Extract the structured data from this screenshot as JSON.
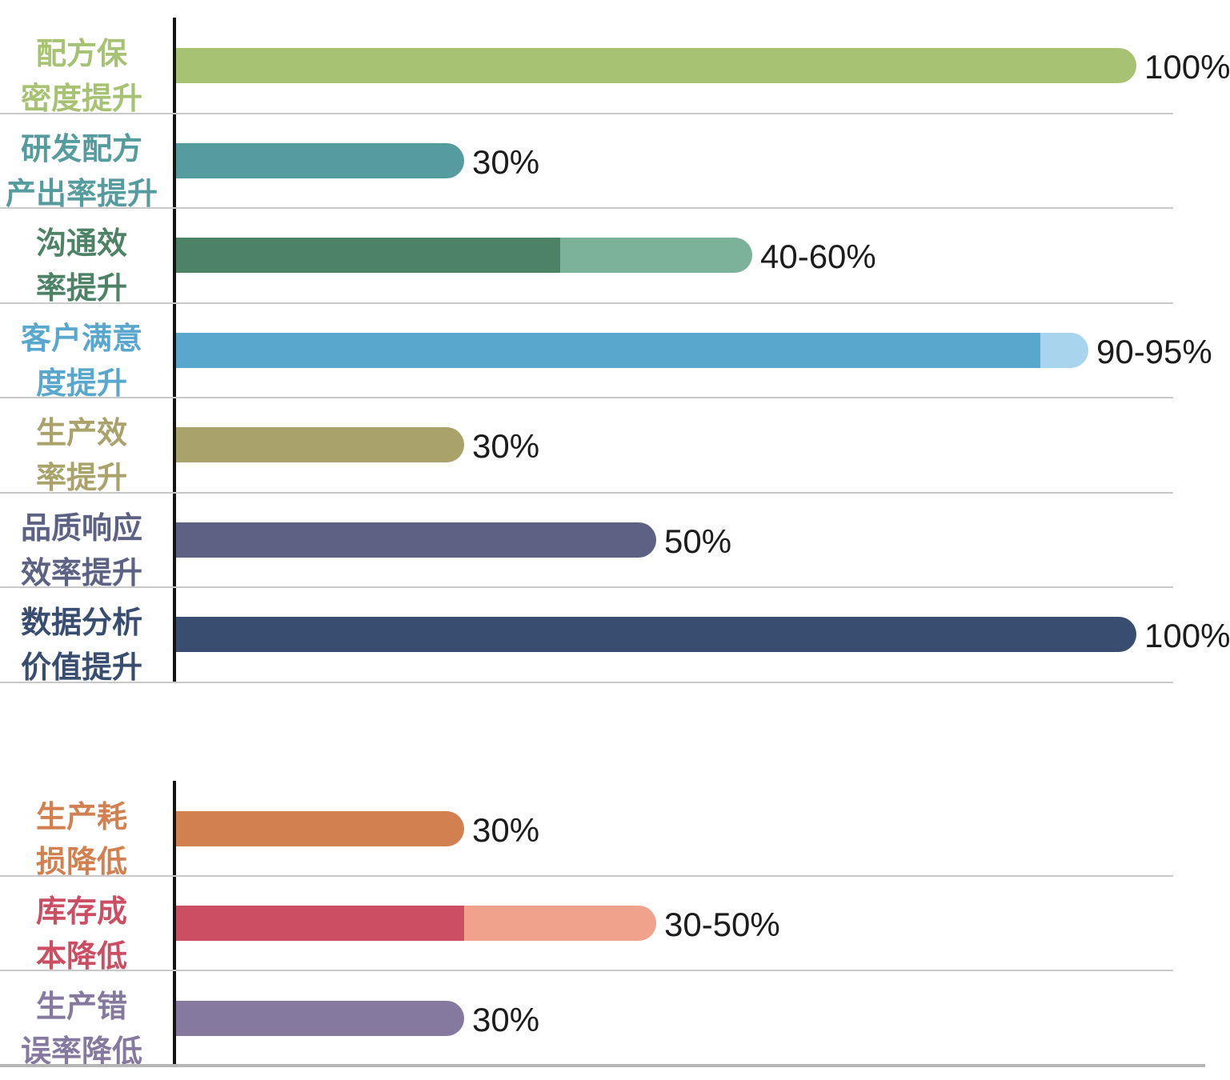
{
  "styles": {
    "background": "#ffffff",
    "axis_color": "#141414",
    "separator_color": "#c9c9c9",
    "value_label_color": "#1c1c1c"
  },
  "chart_data": [
    {
      "type": "bar",
      "orientation": "horizontal",
      "bar_style": "rounded-right-cap",
      "value_axis": {
        "unit": "%",
        "min": 0,
        "max": 100,
        "gridlines": false
      },
      "legend": "none",
      "items": [
        {
          "category": "配方保密度提升",
          "label_lines": [
            "配方保",
            "密度提升"
          ],
          "value": [
            100,
            100
          ],
          "display": "100%",
          "color": "#a6c272",
          "color_light": ""
        },
        {
          "category": "研发配方产出率提升",
          "label_lines": [
            "研发配方",
            "产出率提升"
          ],
          "value": [
            30,
            30
          ],
          "display": "30%",
          "color": "#569c9f",
          "color_light": ""
        },
        {
          "category": "沟通效率提升",
          "label_lines": [
            "沟通效",
            "率提升"
          ],
          "value": [
            40,
            60
          ],
          "display": "40-60%",
          "color": "#4d8266",
          "color_light": "#7cb29a"
        },
        {
          "category": "客户满意度提升",
          "label_lines": [
            "客户满意",
            "度提升"
          ],
          "value": [
            90,
            95
          ],
          "display": "90-95%",
          "color": "#59a7cd",
          "color_light": "#a9d4ee"
        },
        {
          "category": "生产效率提升",
          "label_lines": [
            "生产效",
            "率提升"
          ],
          "value": [
            30,
            30
          ],
          "display": "30%",
          "color": "#a9a26b",
          "color_light": ""
        },
        {
          "category": "品质响应效率提升",
          "label_lines": [
            "品质响应",
            "效率提升"
          ],
          "value": [
            50,
            50
          ],
          "display": "50%",
          "color": "#5d6284",
          "color_light": ""
        },
        {
          "category": "数据分析价值提升",
          "label_lines": [
            "数据分析",
            "价值提升"
          ],
          "value": [
            100,
            100
          ],
          "display": "100%",
          "color": "#384d6f",
          "color_light": ""
        }
      ]
    },
    {
      "type": "bar",
      "orientation": "horizontal",
      "bar_style": "rounded-right-cap",
      "value_axis": {
        "unit": "%",
        "min": 0,
        "max": 100,
        "gridlines": false
      },
      "legend": "none",
      "items": [
        {
          "category": "生产耗损降低",
          "label_lines": [
            "生产耗",
            "损降低"
          ],
          "value": [
            30,
            30
          ],
          "display": "30%",
          "color": "#d28050",
          "color_light": ""
        },
        {
          "category": "库存成本降低",
          "label_lines": [
            "库存成",
            "本降低"
          ],
          "value": [
            30,
            50
          ],
          "display": "30-50%",
          "color": "#cb4e62",
          "color_light": "#f1a28c"
        },
        {
          "category": "生产错误率降低",
          "label_lines": [
            "生产错",
            "误率降低"
          ],
          "value": [
            30,
            30
          ],
          "display": "30%",
          "color": "#85799f",
          "color_light": ""
        }
      ]
    }
  ]
}
